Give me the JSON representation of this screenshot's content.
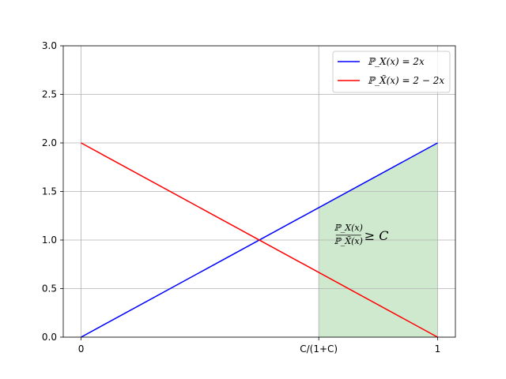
{
  "chart_data": {
    "type": "line",
    "title": "",
    "xlabel": "",
    "ylabel": "",
    "xlim": [
      -0.05,
      1.05
    ],
    "ylim": [
      0,
      3
    ],
    "grid": true,
    "legend_position": "top-right",
    "x_ticks": [
      {
        "value": 0,
        "label": "0"
      },
      {
        "value": 0.6667,
        "label": "C/(1+C)"
      },
      {
        "value": 1,
        "label": "1"
      }
    ],
    "y_ticks": [
      {
        "value": 0.0,
        "label": "0.0"
      },
      {
        "value": 0.5,
        "label": "0.5"
      },
      {
        "value": 1.0,
        "label": "1.0"
      },
      {
        "value": 1.5,
        "label": "1.5"
      },
      {
        "value": 2.0,
        "label": "2.0"
      },
      {
        "value": 2.5,
        "label": "2.5"
      },
      {
        "value": 3.0,
        "label": "3.0"
      }
    ],
    "series": [
      {
        "name": "ℙ_X(x) = 2x",
        "color": "#0000ff",
        "x": [
          0,
          1
        ],
        "y": [
          0,
          2
        ]
      },
      {
        "name": "ℙ_X̃(x) = 2 − 2x",
        "color": "#ff0000",
        "x": [
          0,
          1
        ],
        "y": [
          2,
          0
        ]
      }
    ],
    "shaded_region": {
      "color": "#2ca02c",
      "opacity": 0.23,
      "x": [
        0.6667,
        1
      ],
      "y_lower": [
        0,
        0
      ],
      "y_upper": [
        1.3333,
        2
      ]
    },
    "annotation": {
      "numerator": "ℙ_X(x)",
      "denominator": "ℙ_X̃(x)",
      "relation": "≥ C",
      "x": 0.75,
      "y": 1.05
    }
  }
}
